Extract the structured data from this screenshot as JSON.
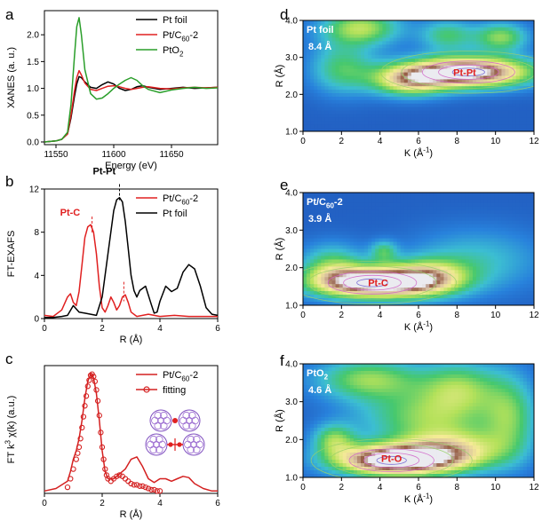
{
  "figure": {
    "panels": [
      "a",
      "b",
      "c",
      "d",
      "e",
      "f"
    ]
  },
  "chart_data": [
    {
      "id": "a",
      "type": "line",
      "xlabel": "Energy (eV)",
      "ylabel": "XANES (a. u.)",
      "xlim": [
        11540,
        11690
      ],
      "ylim": [
        -0.05,
        2.45
      ],
      "xticks": [
        11550,
        11600,
        11650
      ],
      "yticks": [
        0.0,
        0.5,
        1.0,
        1.5,
        2.0
      ],
      "ytick_labels": [
        "0.0",
        "0.5",
        "1.0",
        "1.5",
        "2.0"
      ],
      "legend": {
        "position": "top-right"
      },
      "series": [
        {
          "name": "Pt foil",
          "color": "#000000",
          "x": [
            11540,
            11550,
            11555,
            11560,
            11563,
            11566,
            11568,
            11570,
            11572,
            11575,
            11580,
            11585,
            11590,
            11595,
            11600,
            11605,
            11610,
            11615,
            11620,
            11625,
            11630,
            11640,
            11650,
            11660,
            11670,
            11680,
            11690
          ],
          "y": [
            0.0,
            0.02,
            0.05,
            0.15,
            0.45,
            0.85,
            1.08,
            1.22,
            1.2,
            1.12,
            1.02,
            1.0,
            1.07,
            1.12,
            1.08,
            1.0,
            0.96,
            0.98,
            1.03,
            1.05,
            1.02,
            0.98,
            1.0,
            1.02,
            1.0,
            1.01,
            1.02
          ]
        },
        {
          "name": "Pt/C60-2",
          "name_main": "Pt/C",
          "name_sub": "60",
          "name_tail": "-2",
          "color": "#e02020",
          "x": [
            11540,
            11550,
            11555,
            11560,
            11563,
            11566,
            11568,
            11570,
            11572,
            11575,
            11580,
            11585,
            11590,
            11595,
            11600,
            11605,
            11610,
            11615,
            11620,
            11625,
            11630,
            11640,
            11650,
            11660,
            11670,
            11680,
            11690
          ],
          "y": [
            0.0,
            0.02,
            0.05,
            0.15,
            0.5,
            0.95,
            1.2,
            1.33,
            1.25,
            1.1,
            0.98,
            0.96,
            1.0,
            1.04,
            1.05,
            1.03,
            1.0,
            0.98,
            1.0,
            1.02,
            1.03,
            1.0,
            0.99,
            1.01,
            1.02,
            1.01,
            1.02
          ]
        },
        {
          "name": "PtO2",
          "name_main": "PtO",
          "name_sub": "2",
          "name_tail": "",
          "color": "#2a9e2a",
          "x": [
            11540,
            11550,
            11555,
            11560,
            11563,
            11566,
            11568,
            11570,
            11572,
            11575,
            11580,
            11585,
            11590,
            11595,
            11600,
            11605,
            11610,
            11615,
            11620,
            11625,
            11630,
            11640,
            11650,
            11660,
            11670,
            11680,
            11690
          ],
          "y": [
            0.0,
            0.02,
            0.05,
            0.18,
            0.7,
            1.6,
            2.15,
            2.32,
            2.0,
            1.35,
            0.9,
            0.8,
            0.82,
            0.9,
            1.0,
            1.08,
            1.15,
            1.2,
            1.15,
            1.05,
            0.98,
            0.92,
            0.97,
            1.0,
            1.02,
            1.0,
            1.01
          ]
        }
      ]
    },
    {
      "id": "b",
      "type": "line",
      "xlabel": "R (Å)",
      "ylabel": "FT-EXAFS",
      "xlim": [
        0,
        6
      ],
      "ylim": [
        0,
        12
      ],
      "xticks": [
        0,
        2,
        4,
        6
      ],
      "yticks": [
        0,
        4,
        8,
        12
      ],
      "legend": {
        "position": "top-right"
      },
      "annotations": [
        {
          "text": "Pt-Pt",
          "x": 2.6,
          "y": 11.3,
          "color": "#000000"
        },
        {
          "text": "Pt-C",
          "x": 1.65,
          "y": 8.3,
          "color": "#e02020"
        }
      ],
      "series": [
        {
          "name": "Pt/C60-2",
          "name_main": "Pt/C",
          "name_sub": "60",
          "name_tail": "-2",
          "color": "#e02020",
          "x": [
            0,
            0.3,
            0.6,
            0.8,
            0.9,
            1.0,
            1.1,
            1.2,
            1.3,
            1.4,
            1.5,
            1.6,
            1.7,
            1.8,
            1.9,
            2.0,
            2.1,
            2.2,
            2.3,
            2.4,
            2.5,
            2.6,
            2.7,
            2.8,
            2.9,
            3.0,
            3.2,
            3.4,
            3.6,
            3.8,
            4.0,
            4.5,
            5.0,
            5.5,
            6.0
          ],
          "y": [
            0.3,
            0.2,
            0.8,
            2.0,
            2.3,
            1.5,
            1.2,
            2.5,
            5.0,
            7.5,
            8.5,
            8.7,
            8.0,
            6.0,
            3.0,
            1.0,
            0.6,
            1.2,
            2.0,
            1.5,
            0.8,
            1.2,
            2.0,
            2.2,
            1.5,
            0.6,
            0.2,
            0.3,
            0.4,
            0.3,
            0.2,
            0.3,
            0.2,
            0.2,
            0.2
          ]
        },
        {
          "name": "Pt foil",
          "color": "#000000",
          "x": [
            0,
            0.3,
            0.6,
            0.8,
            1.0,
            1.2,
            1.4,
            1.6,
            1.8,
            2.0,
            2.2,
            2.4,
            2.5,
            2.6,
            2.7,
            2.8,
            2.9,
            3.0,
            3.1,
            3.2,
            3.3,
            3.5,
            3.7,
            3.8,
            3.9,
            4.0,
            4.2,
            4.4,
            4.6,
            4.8,
            5.0,
            5.2,
            5.4,
            5.6,
            5.8,
            6.0
          ],
          "y": [
            0.1,
            0.1,
            0.2,
            0.3,
            1.2,
            0.6,
            0.5,
            0.4,
            0.3,
            2.0,
            6.0,
            10.0,
            11.0,
            11.2,
            10.8,
            9.0,
            6.5,
            4.0,
            2.6,
            2.0,
            2.6,
            3.0,
            1.3,
            0.5,
            0.6,
            1.6,
            3.0,
            2.5,
            2.8,
            4.3,
            5.0,
            4.6,
            3.0,
            1.0,
            0.4,
            0.3
          ]
        }
      ]
    },
    {
      "id": "c",
      "type": "line",
      "xlabel": "R (Å)",
      "ylabel": "FT k3  χ(k) (a.u.)",
      "ylabel_main": "FT k",
      "ylabel_sup": "3",
      "ylabel_tail": " χ(k) (a.u.)",
      "xlim": [
        0,
        6
      ],
      "ylim": [
        0,
        1.05
      ],
      "xticks": [
        0,
        2,
        4,
        6
      ],
      "yticks": [],
      "legend": {
        "position": "top-right"
      },
      "series": [
        {
          "name": "Pt/C60-2",
          "name_main": "Pt/C",
          "name_sub": "60",
          "name_tail": "-2",
          "color": "#d42020",
          "style": "line",
          "x": [
            0,
            0.4,
            0.8,
            0.9,
            1.0,
            1.1,
            1.2,
            1.3,
            1.4,
            1.5,
            1.6,
            1.7,
            1.8,
            1.9,
            2.0,
            2.1,
            2.2,
            2.4,
            2.6,
            2.8,
            3.0,
            3.2,
            3.4,
            3.6,
            3.8,
            4.0,
            4.2,
            4.4,
            4.6,
            4.8,
            5.0,
            5.2,
            5.5,
            5.8,
            6.0
          ],
          "y": [
            0.02,
            0.04,
            0.1,
            0.18,
            0.28,
            0.35,
            0.45,
            0.6,
            0.78,
            0.92,
            0.98,
            0.95,
            0.82,
            0.6,
            0.35,
            0.18,
            0.12,
            0.12,
            0.16,
            0.2,
            0.28,
            0.3,
            0.22,
            0.12,
            0.09,
            0.12,
            0.12,
            0.1,
            0.12,
            0.14,
            0.13,
            0.08,
            0.04,
            0.02,
            0.02
          ]
        },
        {
          "name": "fitting",
          "color": "#d42020",
          "style": "circles",
          "x": [
            0.8,
            0.9,
            1.0,
            1.1,
            1.15,
            1.2,
            1.25,
            1.3,
            1.35,
            1.4,
            1.45,
            1.5,
            1.55,
            1.6,
            1.65,
            1.7,
            1.75,
            1.8,
            1.85,
            1.9,
            1.95,
            2.0,
            2.05,
            2.1,
            2.15,
            2.2,
            2.3,
            2.4,
            2.5,
            2.6,
            2.7,
            2.8,
            2.9,
            3.0,
            3.1,
            3.2,
            3.3,
            3.4,
            3.5,
            3.6,
            3.7,
            3.8,
            3.9,
            4.0
          ],
          "y": [
            0.05,
            0.12,
            0.2,
            0.28,
            0.33,
            0.38,
            0.45,
            0.54,
            0.63,
            0.72,
            0.8,
            0.88,
            0.93,
            0.97,
            0.98,
            0.96,
            0.92,
            0.85,
            0.76,
            0.64,
            0.5,
            0.38,
            0.28,
            0.2,
            0.15,
            0.12,
            0.1,
            0.12,
            0.14,
            0.15,
            0.14,
            0.12,
            0.1,
            0.08,
            0.07,
            0.07,
            0.06,
            0.06,
            0.05,
            0.04,
            0.03,
            0.03,
            0.02,
            0.02
          ]
        }
      ]
    },
    {
      "id": "d",
      "type": "heatmap",
      "xlabel": "K (Å-1)",
      "xlabel_main": "K (Å",
      "xlabel_sup": "-1",
      "xlabel_tail": ")",
      "ylabel": "R (Å)",
      "xlim": [
        0,
        12
      ],
      "ylim": [
        1.0,
        4.0
      ],
      "xticks": [
        0,
        2,
        4,
        6,
        8,
        10,
        12
      ],
      "yticks": [
        1.0,
        2.0,
        3.0,
        4.0
      ],
      "ytick_labels": [
        "1.0",
        "2.0",
        "3.0",
        "4.0"
      ],
      "title": "Pt foil",
      "subtitle": "8.4 Å",
      "annotations": [
        {
          "text": "Pt-Pt",
          "x": 8.4,
          "y": 2.6,
          "color": "#e02020"
        }
      ],
      "peaks": [
        {
          "k": 8.6,
          "r": 2.6,
          "amp": 1.0,
          "sk": 2.4,
          "sr": 0.3
        },
        {
          "k": 5.5,
          "r": 2.35,
          "amp": 0.55,
          "sk": 1.4,
          "sr": 0.3
        },
        {
          "k": 10.3,
          "r": 3.55,
          "amp": 0.45,
          "sk": 1.0,
          "sr": 0.28
        },
        {
          "k": 7.5,
          "r": 3.6,
          "amp": 0.35,
          "sk": 1.0,
          "sr": 0.3
        },
        {
          "k": 3.0,
          "r": 3.8,
          "amp": 0.5,
          "sk": 1.5,
          "sr": 0.35
        },
        {
          "k": 2.0,
          "r": 2.7,
          "amp": 0.35,
          "sk": 1.2,
          "sr": 0.5
        }
      ]
    },
    {
      "id": "e",
      "type": "heatmap",
      "xlabel": "K (Å-1)",
      "xlabel_main": "K (Å",
      "xlabel_sup": "-1",
      "xlabel_tail": ")",
      "ylabel": "R (Å)",
      "xlim": [
        0,
        12
      ],
      "ylim": [
        1.0,
        4.0
      ],
      "xticks": [
        0,
        2,
        4,
        6,
        8,
        10,
        12
      ],
      "yticks": [
        1.0,
        2.0,
        3.0,
        4.0
      ],
      "ytick_labels": [
        "1.0",
        "2.0",
        "3.0",
        "4.0"
      ],
      "title": "Pt/C60-2",
      "title_main": "Pt/C",
      "title_sub": "60",
      "title_tail": "-2",
      "subtitle": "3.9 Å",
      "annotations": [
        {
          "text": "Pt-C",
          "x": 3.9,
          "y": 1.6,
          "color": "#e02020"
        }
      ],
      "peaks": [
        {
          "k": 3.6,
          "r": 1.6,
          "amp": 1.0,
          "sk": 2.3,
          "sr": 0.3
        },
        {
          "k": 6.5,
          "r": 1.75,
          "amp": 0.45,
          "sk": 1.5,
          "sr": 0.35
        },
        {
          "k": 4.2,
          "r": 2.45,
          "amp": 0.3,
          "sk": 0.5,
          "sr": 0.2
        },
        {
          "k": 1.5,
          "r": 2.1,
          "amp": 0.35,
          "sk": 1.2,
          "sr": 0.4
        },
        {
          "k": 9.0,
          "r": 2.2,
          "amp": 0.25,
          "sk": 2.5,
          "sr": 0.6
        }
      ]
    },
    {
      "id": "f",
      "type": "heatmap",
      "xlabel": "K (Å-1)",
      "xlabel_main": "K (Å",
      "xlabel_sup": "-1",
      "xlabel_tail": ")",
      "ylabel": "R (Å)",
      "xlim": [
        0,
        12
      ],
      "ylim": [
        1.0,
        4.0
      ],
      "xticks": [
        0,
        2,
        4,
        6,
        8,
        10,
        12
      ],
      "yticks": [
        1.0,
        2.0,
        3.0,
        4.0
      ],
      "ytick_labels": [
        "1.0",
        "2.0",
        "3.0",
        "4.0"
      ],
      "title": "PtO2",
      "title_main": "PtO",
      "title_sub": "2",
      "title_tail": "",
      "subtitle": "4.6 Å",
      "annotations": [
        {
          "text": "Pt-O",
          "x": 4.6,
          "y": 1.5,
          "color": "#e02020"
        }
      ],
      "peaks": [
        {
          "k": 4.6,
          "r": 1.45,
          "amp": 1.0,
          "sk": 2.2,
          "sr": 0.3
        },
        {
          "k": 7.8,
          "r": 1.7,
          "amp": 0.55,
          "sk": 2.0,
          "sr": 0.4
        },
        {
          "k": 1.6,
          "r": 2.0,
          "amp": 0.4,
          "sk": 0.8,
          "sr": 0.3
        },
        {
          "k": 6.3,
          "r": 2.6,
          "amp": 0.4,
          "sk": 2.5,
          "sr": 0.5
        },
        {
          "k": 3.4,
          "r": 3.6,
          "amp": 0.45,
          "sk": 2.0,
          "sr": 0.4
        },
        {
          "k": 8.2,
          "r": 3.4,
          "amp": 0.4,
          "sk": 1.5,
          "sr": 0.5
        },
        {
          "k": 10.8,
          "r": 2.6,
          "amp": 0.35,
          "sk": 1.0,
          "sr": 0.8
        }
      ]
    }
  ]
}
